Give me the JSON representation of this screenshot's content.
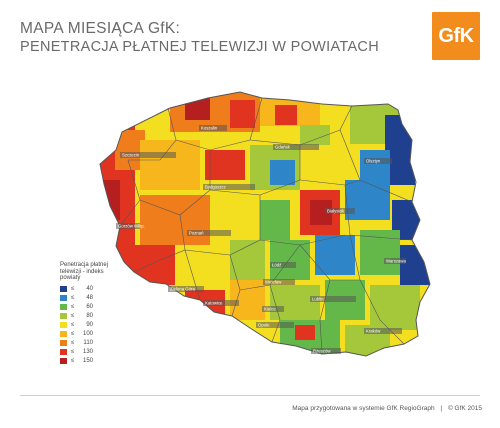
{
  "header": {
    "title_line1": "MAPA MIESIĄCA GfK:",
    "title_line2": "PENETRACJA PŁATNEJ TELEWIZJI W POWIATACH",
    "logo_text": "GfK",
    "logo_color": "#f28c1c"
  },
  "legend": {
    "title_lines": [
      "Penetracja płatnej",
      "telewizji - indeks",
      "powiaty"
    ],
    "items": [
      {
        "op": "≤",
        "value": "40",
        "color": "#1f3f8f"
      },
      {
        "op": "≤",
        "value": "48",
        "color": "#2e86c8"
      },
      {
        "op": "≤",
        "value": "60",
        "color": "#64b84a"
      },
      {
        "op": "≤",
        "value": "80",
        "color": "#a5c83a"
      },
      {
        "op": "≤",
        "value": "90",
        "color": "#f3df1f"
      },
      {
        "op": "≤",
        "value": "100",
        "color": "#f7b61c"
      },
      {
        "op": "≤",
        "value": "110",
        "color": "#f07d1c"
      },
      {
        "op": "≤",
        "value": "130",
        "color": "#e03420"
      },
      {
        "op": "≤",
        "value": "150",
        "color": "#b51f1f"
      }
    ]
  },
  "cities": [
    {
      "name": "Koszalin"
    },
    {
      "name": "Gdańsk"
    },
    {
      "name": "Olsztyn"
    },
    {
      "name": "Szczecin"
    },
    {
      "name": "Bydgoszcz"
    },
    {
      "name": "Białystok"
    },
    {
      "name": "Gorzów Wlkp."
    },
    {
      "name": "Poznań"
    },
    {
      "name": "Warszawa"
    },
    {
      "name": "Łódź"
    },
    {
      "name": "Wrocław"
    },
    {
      "name": "Lublin"
    },
    {
      "name": "Katowice"
    },
    {
      "name": "Kielce"
    },
    {
      "name": "Opole"
    },
    {
      "name": "Kraków"
    },
    {
      "name": "Rzeszów"
    },
    {
      "name": "Zielona Góra"
    }
  ],
  "footer": {
    "credit": "Mapa przygotowana w systemie GfK RegioGraph",
    "separator": "|",
    "copyright": "© GfK 2015"
  }
}
